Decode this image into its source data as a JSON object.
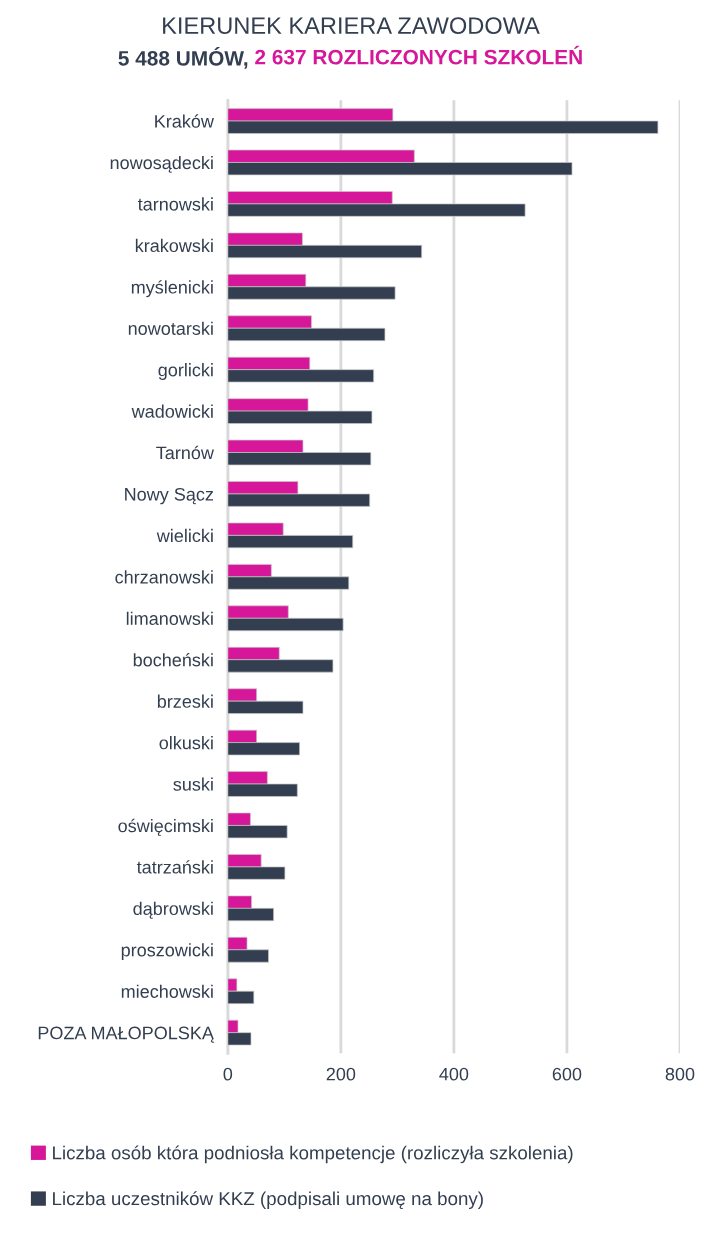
{
  "chart_data": {
    "type": "bar",
    "orientation": "horizontal",
    "title": "KIERUNEK KARIERA ZAWODOWA",
    "subtitle": "5 488 UMÓW, 2 637 ROZLICZONYCH SZKOLEŃ",
    "categories": [
      "Kraków",
      "nowosądecki",
      "tarnowski",
      "krakowski",
      "myślenicki",
      "nowotarski",
      "gorlicki",
      "wadowicki",
      "Tarnów",
      "Nowy Sącz",
      "wielicki",
      "chrzanowski",
      "limanowski",
      "bocheński",
      "brzeski",
      "olkuski",
      "suski",
      "oświęcimski",
      "tatrzański",
      "dąbrowski",
      "proszowicki",
      "miechowski",
      "POZA MAŁOPOLSKĄ"
    ],
    "series": [
      {
        "name": "Liczba osób która podniosła kompetencje (rozliczyła szkolenia)",
        "color": "#d6179a",
        "values": [
          292,
          330,
          291,
          132,
          138,
          148,
          145,
          142,
          133,
          124,
          98,
          77,
          107,
          91,
          51,
          51,
          70,
          40,
          59,
          42,
          34,
          16,
          18
        ]
      },
      {
        "name": "Liczba uczestników KKZ (podpisali umowę na bony)",
        "color": "#333f50",
        "values": [
          761,
          609,
          526,
          343,
          296,
          278,
          258,
          255,
          253,
          251,
          221,
          214,
          204,
          186,
          133,
          127,
          123,
          105,
          101,
          81,
          72,
          46,
          41
        ]
      }
    ],
    "xlim": [
      0,
      800
    ],
    "xticks": [
      0,
      200,
      400,
      600,
      800
    ],
    "grid": "x",
    "legend": "bottom"
  }
}
